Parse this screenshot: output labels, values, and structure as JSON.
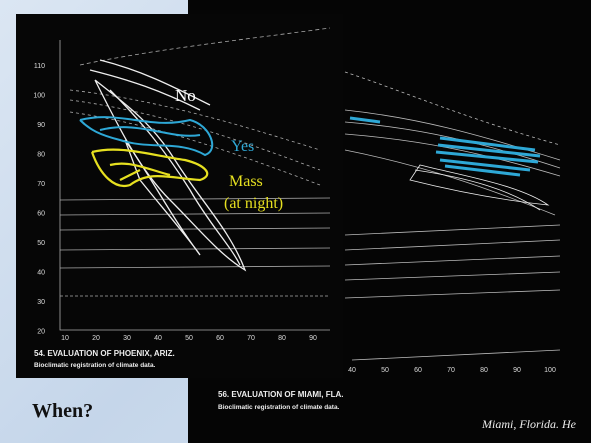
{
  "slide": {
    "left_figure": {
      "x_ticks": [
        "10",
        "20",
        "30",
        "40",
        "50",
        "60",
        "70",
        "80",
        "90"
      ],
      "y_ticks": [
        "110",
        "100",
        "90",
        "80",
        "70",
        "60",
        "50",
        "40",
        "30",
        "20"
      ],
      "caption": "54. EVALUATION OF PHOENIX, ARIZ.",
      "subcaption": "Bioclimatic registration of climate data."
    },
    "right_figure": {
      "x_ticks": [
        "40",
        "50",
        "60",
        "70",
        "80",
        "90",
        "100"
      ],
      "caption": "56. EVALUATION OF MIAMI, FLA.",
      "subcaption": "Bioclimatic registration of climate data.",
      "footer": "Miami, Florida. He"
    },
    "annotations": {
      "no": "No",
      "yes": "Yes",
      "mass": "Mass",
      "mass_note": "(at night)"
    },
    "question": "When?"
  }
}
